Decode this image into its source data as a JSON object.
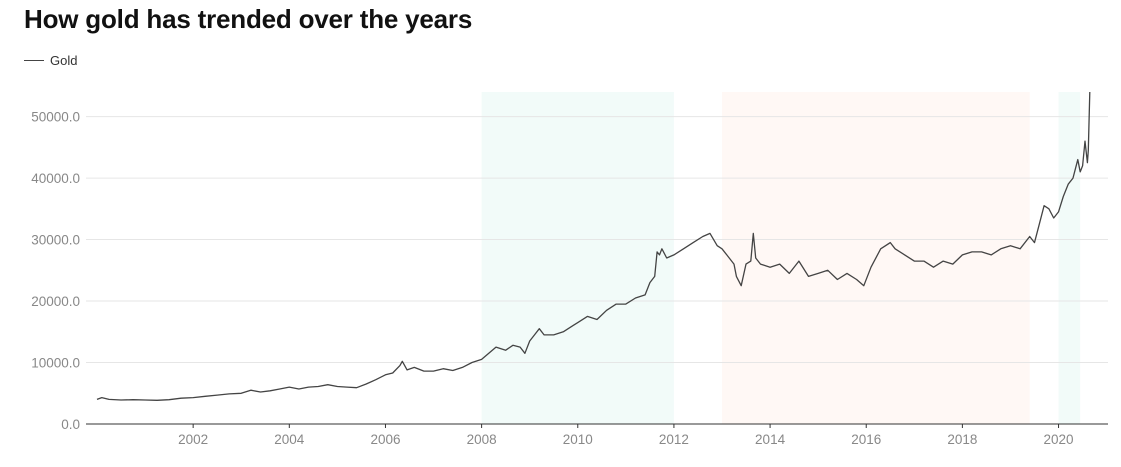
{
  "chart_data": {
    "type": "line",
    "title": "How gold has trended over the years",
    "legend": {
      "placement": "top-left",
      "entries": [
        "Gold"
      ]
    },
    "xlabel": "",
    "ylabel": "",
    "x_range": [
      2000.0,
      2020.8
    ],
    "ylim": [
      0,
      54000
    ],
    "x_ticks": [
      2002,
      2004,
      2006,
      2008,
      2010,
      2012,
      2014,
      2016,
      2018,
      2020
    ],
    "y_ticks": [
      0,
      10000,
      20000,
      30000,
      40000,
      50000
    ],
    "y_tick_labels": [
      "0.0",
      "10000.0",
      "20000.0",
      "30000.0",
      "40000.0",
      "50000.0"
    ],
    "grid": {
      "horizontal": true,
      "vertical": false
    },
    "shaded_periods": [
      {
        "start": 2008.0,
        "end": 2012.0,
        "color": "#f2fbf9"
      },
      {
        "start": 2013.0,
        "end": 2019.4,
        "color": "#fff8f5"
      },
      {
        "start": 2020.0,
        "end": 2020.45,
        "color": "#f2fbf9"
      }
    ],
    "colors": {
      "line": "#444444",
      "grid": "#e6e6e6",
      "axis": "#333333",
      "tick_text": "#888888"
    },
    "series": [
      {
        "name": "Gold",
        "x": [
          2000.0,
          2000.1,
          2000.25,
          2000.5,
          2000.75,
          2001.0,
          2001.25,
          2001.5,
          2001.75,
          2002.0,
          2002.25,
          2002.5,
          2002.75,
          2003.0,
          2003.2,
          2003.4,
          2003.6,
          2003.8,
          2004.0,
          2004.2,
          2004.4,
          2004.6,
          2004.8,
          2005.0,
          2005.2,
          2005.4,
          2005.6,
          2005.8,
          2006.0,
          2006.15,
          2006.3,
          2006.35,
          2006.45,
          2006.6,
          2006.8,
          2007.0,
          2007.2,
          2007.4,
          2007.6,
          2007.8,
          2008.0,
          2008.15,
          2008.3,
          2008.5,
          2008.65,
          2008.8,
          2008.9,
          2009.0,
          2009.1,
          2009.2,
          2009.3,
          2009.5,
          2009.7,
          2009.9,
          2010.0,
          2010.2,
          2010.4,
          2010.6,
          2010.8,
          2011.0,
          2011.2,
          2011.4,
          2011.5,
          2011.6,
          2011.65,
          2011.7,
          2011.75,
          2011.85,
          2012.0,
          2012.2,
          2012.4,
          2012.6,
          2012.75,
          2012.9,
          2013.0,
          2013.1,
          2013.25,
          2013.3,
          2013.4,
          2013.5,
          2013.6,
          2013.65,
          2013.7,
          2013.8,
          2014.0,
          2014.2,
          2014.4,
          2014.6,
          2014.8,
          2015.0,
          2015.2,
          2015.4,
          2015.6,
          2015.8,
          2015.95,
          2016.1,
          2016.3,
          2016.5,
          2016.6,
          2016.8,
          2017.0,
          2017.2,
          2017.4,
          2017.6,
          2017.8,
          2018.0,
          2018.2,
          2018.4,
          2018.6,
          2018.8,
          2019.0,
          2019.2,
          2019.4,
          2019.5,
          2019.6,
          2019.7,
          2019.8,
          2019.9,
          2020.0,
          2020.1,
          2020.2,
          2020.3,
          2020.4,
          2020.45,
          2020.5,
          2020.55,
          2020.6,
          2020.62,
          2020.65
        ],
        "values": [
          4000,
          4300,
          4000,
          3900,
          3950,
          3900,
          3850,
          3950,
          4200,
          4300,
          4500,
          4700,
          4900,
          5000,
          5500,
          5200,
          5400,
          5700,
          6000,
          5700,
          6000,
          6100,
          6400,
          6100,
          6000,
          5900,
          6500,
          7200,
          8000,
          8300,
          9500,
          10200,
          8800,
          9200,
          8600,
          8600,
          9000,
          8700,
          9200,
          10000,
          10500,
          11500,
          12500,
          12000,
          12800,
          12500,
          11500,
          13500,
          14500,
          15500,
          14500,
          14500,
          15000,
          16000,
          16500,
          17500,
          17000,
          18500,
          19500,
          19500,
          20500,
          21000,
          23000,
          24000,
          28000,
          27500,
          28500,
          27000,
          27500,
          28500,
          29500,
          30500,
          31000,
          29000,
          28500,
          27500,
          26000,
          24000,
          22500,
          26000,
          26500,
          31000,
          27000,
          26000,
          25500,
          26000,
          24500,
          26500,
          24000,
          24500,
          25000,
          23500,
          24500,
          23500,
          22500,
          25500,
          28500,
          29500,
          28500,
          27500,
          26500,
          26500,
          25500,
          26500,
          26000,
          27500,
          28000,
          28000,
          27500,
          28500,
          29000,
          28500,
          30500,
          29500,
          32500,
          35500,
          35000,
          33500,
          34500,
          37000,
          39000,
          40000,
          43000,
          41000,
          42000,
          46000,
          42500,
          44500,
          54000
        ]
      }
    ]
  }
}
